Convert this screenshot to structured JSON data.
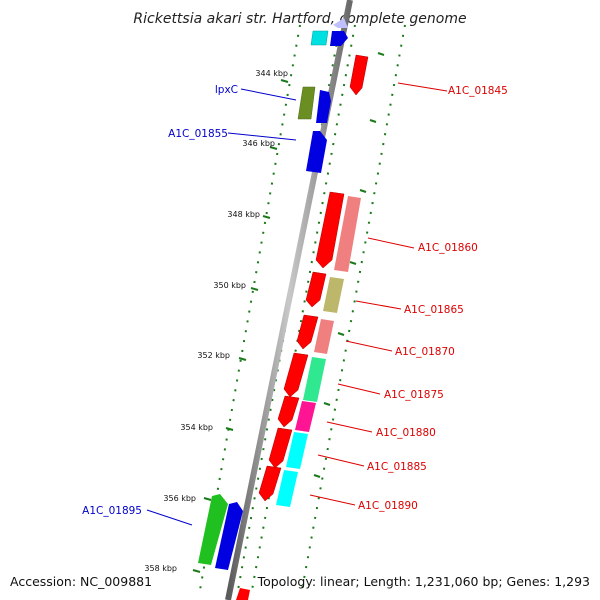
{
  "title": "Rickettsia akari str. Hartford, complete genome",
  "footer": {
    "accession": "Accession: NC_009881",
    "summary": "Topology: linear; Length: 1,231,060 bp; Genes: 1,293"
  },
  "axis_ticks": [
    "344 kbp",
    "346 kbp",
    "348 kbp",
    "350 kbp",
    "352 kbp",
    "354 kbp",
    "356 kbp",
    "358 kbp"
  ],
  "colors": {
    "backbone": "#8c8c8c",
    "tick_marks": "#1a7a1a",
    "forward_label": "#0000cc",
    "reverse_label": "#dd0000"
  },
  "gene_labels_left": [
    "lpxC",
    "A1C_01855",
    "A1C_01895"
  ],
  "gene_labels_right": [
    "A1C_01845",
    "A1C_01860",
    "A1C_01865",
    "A1C_01870",
    "A1C_01875",
    "A1C_01880",
    "A1C_01885",
    "A1C_01890"
  ]
}
